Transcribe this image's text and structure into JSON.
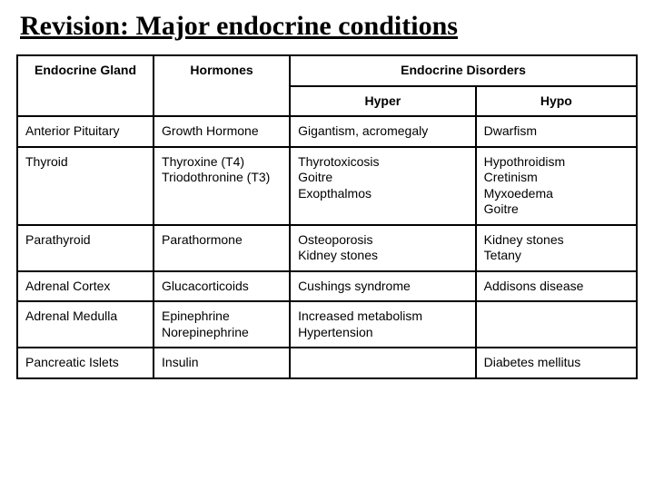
{
  "title": "Revision: Major endocrine conditions",
  "table": {
    "headers": {
      "gland": "Endocrine Gland",
      "hormones": "Hormones",
      "disorders": "Endocrine Disorders",
      "hyper": "Hyper",
      "hypo": "Hypo"
    },
    "rows": [
      {
        "gland": "Anterior Pituitary",
        "hormones": "Growth Hormone",
        "hyper": "Gigantism, acromegaly",
        "hypo": "Dwarfism"
      },
      {
        "gland": "Thyroid",
        "hormones": "Thyroxine (T4)\nTriodothronine (T3)",
        "hyper": "Thyrotoxicosis\nGoitre\nExopthalmos",
        "hypo": "Hypothroidism\nCretinism\nMyxoedema\nGoitre"
      },
      {
        "gland": "Parathyroid",
        "hormones": "Parathormone",
        "hyper": "Osteoporosis\nKidney stones",
        "hypo": "Kidney stones\nTetany"
      },
      {
        "gland": "Adrenal Cortex",
        "hormones": "Glucacorticoids",
        "hyper": "Cushings syndrome",
        "hypo": "Addisons disease"
      },
      {
        "gland": "Adrenal Medulla",
        "hormones": "Epinephrine\nNorepinephrine",
        "hyper": "Increased metabolism\nHypertension",
        "hypo": ""
      },
      {
        "gland": "Pancreatic Islets",
        "hormones": "Insulin",
        "hyper": "",
        "hypo": "Diabetes mellitus"
      }
    ]
  },
  "colors": {
    "text": "#000000",
    "border": "#000000",
    "background": "#ffffff"
  },
  "typography": {
    "title_fontsize": 30,
    "title_family": "Comic Sans MS",
    "body_fontsize": 14,
    "body_family": "Verdana"
  }
}
